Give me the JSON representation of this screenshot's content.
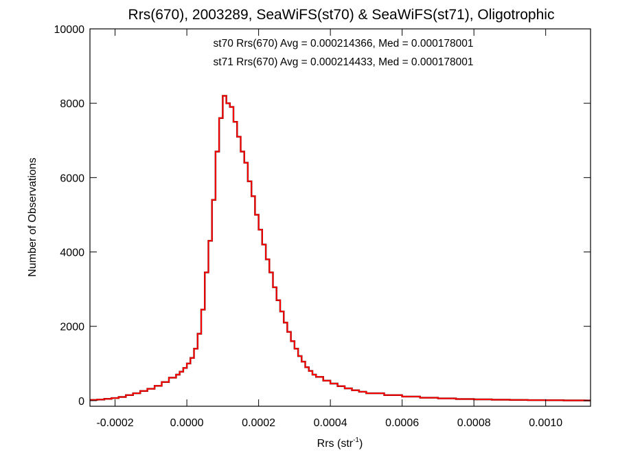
{
  "chart_data": {
    "type": "histogram",
    "title": "Rrs(670), 2003289, SeaWiFS(st70) & SeaWiFS(st71), Oligotrophic",
    "xlabel": "Rrs (str",
    "xlabel_sup": "-1",
    "xlabel_close": ")",
    "ylabel": "Number of Observations",
    "xlim": [
      -0.00027,
      0.001125
    ],
    "ylim": [
      -150,
      10000
    ],
    "x_ticks": [
      -0.0002,
      0.0,
      0.0002,
      0.0004,
      0.0006,
      0.0008,
      0.001
    ],
    "x_tick_labels": [
      "-0.0002",
      "0.0000",
      "0.0002",
      "0.0004",
      "0.0006",
      "0.0008",
      "0.0010"
    ],
    "y_ticks": [
      0,
      2000,
      4000,
      6000,
      8000,
      10000
    ],
    "y_tick_labels": [
      "0",
      "2000",
      "4000",
      "6000",
      "8000",
      "10000"
    ],
    "grid": false,
    "colors": {
      "st70": "#000000",
      "st71": "#ff0000"
    },
    "annotations": [
      {
        "text": "st70 Rrs(670) Avg = 0.000214366, Med = 0.000178001",
        "color": "#000000"
      },
      {
        "text": "st71 Rrs(670) Avg = 0.000214433, Med = 0.000178001",
        "color": "#ff0000"
      }
    ],
    "series": [
      {
        "name": "st70",
        "color": "#000000",
        "x": [
          -0.00027,
          -0.00025,
          -0.00023,
          -0.00021,
          -0.00019,
          -0.00017,
          -0.00015,
          -0.00013,
          -0.00011,
          -9e-05,
          -7e-05,
          -5e-05,
          -3e-05,
          -2e-05,
          -1e-05,
          0.0,
          1e-05,
          2e-05,
          3e-05,
          4e-05,
          5e-05,
          6e-05,
          7e-05,
          8e-05,
          9e-05,
          0.0001,
          0.00011,
          0.00012,
          0.00013,
          0.00014,
          0.00015,
          0.00016,
          0.00017,
          0.00018,
          0.00019,
          0.0002,
          0.00021,
          0.00022,
          0.00023,
          0.00024,
          0.00025,
          0.00026,
          0.00027,
          0.00028,
          0.00029,
          0.0003,
          0.00031,
          0.00032,
          0.00033,
          0.00034,
          0.00035,
          0.00036,
          0.00038,
          0.0004,
          0.00042,
          0.00044,
          0.00046,
          0.00048,
          0.0005,
          0.00055,
          0.0006,
          0.00065,
          0.0007,
          0.00075,
          0.0008,
          0.00085,
          0.0009,
          0.00095,
          0.001,
          0.00105,
          0.00111
        ],
        "y": [
          20,
          30,
          50,
          70,
          100,
          150,
          200,
          260,
          320,
          400,
          500,
          620,
          700,
          780,
          880,
          1000,
          1150,
          1400,
          1800,
          2450,
          3450,
          4300,
          5400,
          6700,
          7600,
          8200,
          8000,
          7900,
          7500,
          7100,
          6700,
          6400,
          5900,
          5500,
          5000,
          4600,
          4200,
          3800,
          3450,
          3050,
          2700,
          2400,
          2100,
          1850,
          1600,
          1400,
          1200,
          1050,
          900,
          800,
          700,
          640,
          540,
          460,
          390,
          330,
          280,
          240,
          200,
          150,
          110,
          80,
          60,
          45,
          35,
          25,
          20,
          15,
          12,
          8,
          5
        ]
      },
      {
        "name": "st71",
        "color": "#ff0000",
        "x": [
          -0.00027,
          -0.00025,
          -0.00023,
          -0.00021,
          -0.00019,
          -0.00017,
          -0.00015,
          -0.00013,
          -0.00011,
          -9e-05,
          -7e-05,
          -5e-05,
          -3e-05,
          -2e-05,
          -1e-05,
          0.0,
          1e-05,
          2e-05,
          3e-05,
          4e-05,
          5e-05,
          6e-05,
          7e-05,
          8e-05,
          9e-05,
          0.0001,
          0.00011,
          0.00012,
          0.00013,
          0.00014,
          0.00015,
          0.00016,
          0.00017,
          0.00018,
          0.00019,
          0.0002,
          0.00021,
          0.00022,
          0.00023,
          0.00024,
          0.00025,
          0.00026,
          0.00027,
          0.00028,
          0.00029,
          0.0003,
          0.00031,
          0.00032,
          0.00033,
          0.00034,
          0.00035,
          0.00036,
          0.00038,
          0.0004,
          0.00042,
          0.00044,
          0.00046,
          0.00048,
          0.0005,
          0.00055,
          0.0006,
          0.00065,
          0.0007,
          0.00075,
          0.0008,
          0.00085,
          0.0009,
          0.00095,
          0.001,
          0.00105,
          0.00111
        ],
        "y": [
          20,
          30,
          50,
          70,
          100,
          150,
          200,
          260,
          320,
          400,
          500,
          620,
          700,
          780,
          880,
          1000,
          1150,
          1400,
          1800,
          2450,
          3450,
          4300,
          5400,
          6700,
          7600,
          8200,
          8000,
          7900,
          7500,
          7100,
          6700,
          6400,
          5900,
          5500,
          5000,
          4600,
          4200,
          3800,
          3450,
          3050,
          2700,
          2400,
          2100,
          1850,
          1600,
          1400,
          1200,
          1050,
          900,
          800,
          700,
          640,
          540,
          460,
          390,
          330,
          280,
          240,
          200,
          150,
          110,
          80,
          60,
          45,
          35,
          25,
          20,
          15,
          12,
          8,
          5
        ]
      }
    ]
  }
}
